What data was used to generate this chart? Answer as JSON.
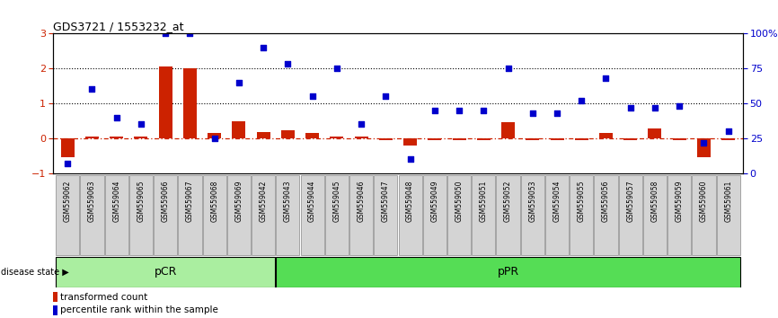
{
  "title": "GDS3721 / 1553232_at",
  "samples": [
    "GSM559062",
    "GSM559063",
    "GSM559064",
    "GSM559065",
    "GSM559066",
    "GSM559067",
    "GSM559068",
    "GSM559069",
    "GSM559042",
    "GSM559043",
    "GSM559044",
    "GSM559045",
    "GSM559046",
    "GSM559047",
    "GSM559048",
    "GSM559049",
    "GSM559050",
    "GSM559051",
    "GSM559052",
    "GSM559053",
    "GSM559054",
    "GSM559055",
    "GSM559056",
    "GSM559057",
    "GSM559058",
    "GSM559059",
    "GSM559060",
    "GSM559061"
  ],
  "red_values": [
    -0.55,
    0.05,
    0.05,
    0.05,
    2.05,
    2.0,
    0.15,
    0.5,
    0.18,
    0.22,
    0.15,
    0.05,
    0.05,
    -0.05,
    -0.2,
    -0.05,
    -0.05,
    -0.05,
    0.45,
    -0.05,
    -0.05,
    -0.05,
    0.15,
    -0.05,
    0.27,
    -0.05,
    -0.55,
    -0.05
  ],
  "blue_values": [
    7,
    60,
    40,
    35,
    100,
    100,
    25,
    65,
    90,
    78,
    55,
    75,
    35,
    55,
    10,
    45,
    45,
    45,
    75,
    43,
    43,
    52,
    68,
    47,
    47,
    48,
    22,
    30
  ],
  "pCR_count": 9,
  "pPR_count": 19,
  "ylim_left": [
    -1,
    3
  ],
  "ylim_right": [
    0,
    100
  ],
  "yticks_left": [
    -1,
    0,
    1,
    2,
    3
  ],
  "yticks_right": [
    0,
    25,
    50,
    75,
    100
  ],
  "ytick_labels_right": [
    "0",
    "25",
    "50",
    "75",
    "100%"
  ],
  "bar_color": "#cc2200",
  "dot_color": "#0000cc",
  "zero_line_color": "#cc2200",
  "dotted_line_color": "#000000",
  "pCR_color": "#aaeea0",
  "pPR_color": "#55dd55",
  "label_red": "transformed count",
  "label_blue": "percentile rank within the sample",
  "disease_state_label": "disease state"
}
